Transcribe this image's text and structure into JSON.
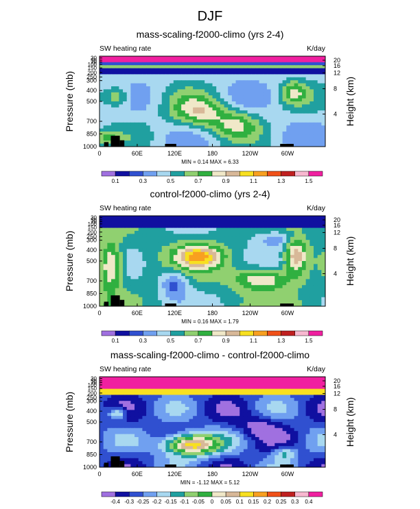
{
  "figure_title": "DJF",
  "chart_data": [
    {
      "type": "heatmap",
      "title": "mass-scaling-f2000-climo (yrs 2-4)",
      "left_label": "SW heating rate",
      "right_label": "K/day",
      "ylabel": "Pressure (mb)",
      "y2label": "Height (km)",
      "x_ticks": [
        "0",
        "60E",
        "120E",
        "180",
        "120W",
        "60W"
      ],
      "y_ticks": [
        "1000",
        "850",
        "700",
        "500",
        "400",
        "300",
        "250",
        "200",
        "150",
        "100",
        "70",
        "50",
        "30"
      ],
      "height_ticks": [
        "4",
        "8",
        "12",
        "16",
        "20"
      ],
      "stats": "MIN =  0.14  MAX =  6.33",
      "min": 0.14,
      "max": 6.33,
      "colorbar": {
        "labels": [
          "0.1",
          "0.3",
          "0.5",
          "0.7",
          "0.9",
          "1.1",
          "1.3",
          "1.5"
        ],
        "colors": [
          "#a070e0",
          "#1010a0",
          "#3050d0",
          "#70a0f0",
          "#a8d8f0",
          "#20a0a0",
          "#90d070",
          "#30b040",
          "#f0e8c8",
          "#d8b898",
          "#f8e020",
          "#f8a020",
          "#f05018",
          "#c02020",
          "#f8b8d0",
          "#f020a0"
        ]
      }
    },
    {
      "type": "heatmap",
      "title": "control-f2000-climo (yrs 2-4)",
      "left_label": "SW heating rate",
      "right_label": "K/day",
      "ylabel": "Pressure (mb)",
      "y2label": "Height (km)",
      "x_ticks": [
        "0",
        "60E",
        "120E",
        "180",
        "120W",
        "60W"
      ],
      "y_ticks": [
        "1000",
        "850",
        "700",
        "500",
        "400",
        "300",
        "250",
        "200",
        "150",
        "100",
        "70",
        "50",
        "30"
      ],
      "height_ticks": [
        "4",
        "8",
        "12",
        "16",
        "20"
      ],
      "stats": "MIN =  0.16  MAX =  1.79",
      "min": 0.16,
      "max": 1.79,
      "colorbar": {
        "labels": [
          "0.1",
          "0.3",
          "0.5",
          "0.7",
          "0.9",
          "1.1",
          "1.3",
          "1.5"
        ],
        "colors": [
          "#a070e0",
          "#1010a0",
          "#3050d0",
          "#70a0f0",
          "#a8d8f0",
          "#20a0a0",
          "#90d070",
          "#30b040",
          "#f0e8c8",
          "#d8b898",
          "#f8e020",
          "#f8a020",
          "#f05018",
          "#c02020",
          "#f8b8d0",
          "#f020a0"
        ]
      }
    },
    {
      "type": "heatmap",
      "title": "mass-scaling-f2000-climo - control-f2000-climo",
      "left_label": "SW heating rate",
      "right_label": "K/day",
      "ylabel": "Pressure (mb)",
      "y2label": "Height (km)",
      "x_ticks": [
        "0",
        "60E",
        "120E",
        "180",
        "120W",
        "60W"
      ],
      "y_ticks": [
        "1000",
        "850",
        "700",
        "500",
        "400",
        "300",
        "250",
        "200",
        "150",
        "100",
        "70",
        "50",
        "30"
      ],
      "height_ticks": [
        "4",
        "8",
        "12",
        "16",
        "20"
      ],
      "stats": "MIN = -1.12  MAX =  5.12",
      "min": -1.12,
      "max": 5.12,
      "colorbar": {
        "labels": [
          "-0.4",
          "-0.3",
          "-0.25",
          "-0.2",
          "-0.15",
          "-0.1",
          "-0.05",
          "0",
          "0.05",
          "0.1",
          "0.15",
          "0.2",
          "0.25",
          "0.3",
          "0.4"
        ],
        "colors": [
          "#a070e0",
          "#1010a0",
          "#3050d0",
          "#70a0f0",
          "#a8d8f0",
          "#20a0a0",
          "#90d070",
          "#30b040",
          "#f0e8c8",
          "#d8b898",
          "#f8e020",
          "#f8a020",
          "#f05018",
          "#c02020",
          "#f8b8d0",
          "#f020a0"
        ]
      }
    }
  ]
}
